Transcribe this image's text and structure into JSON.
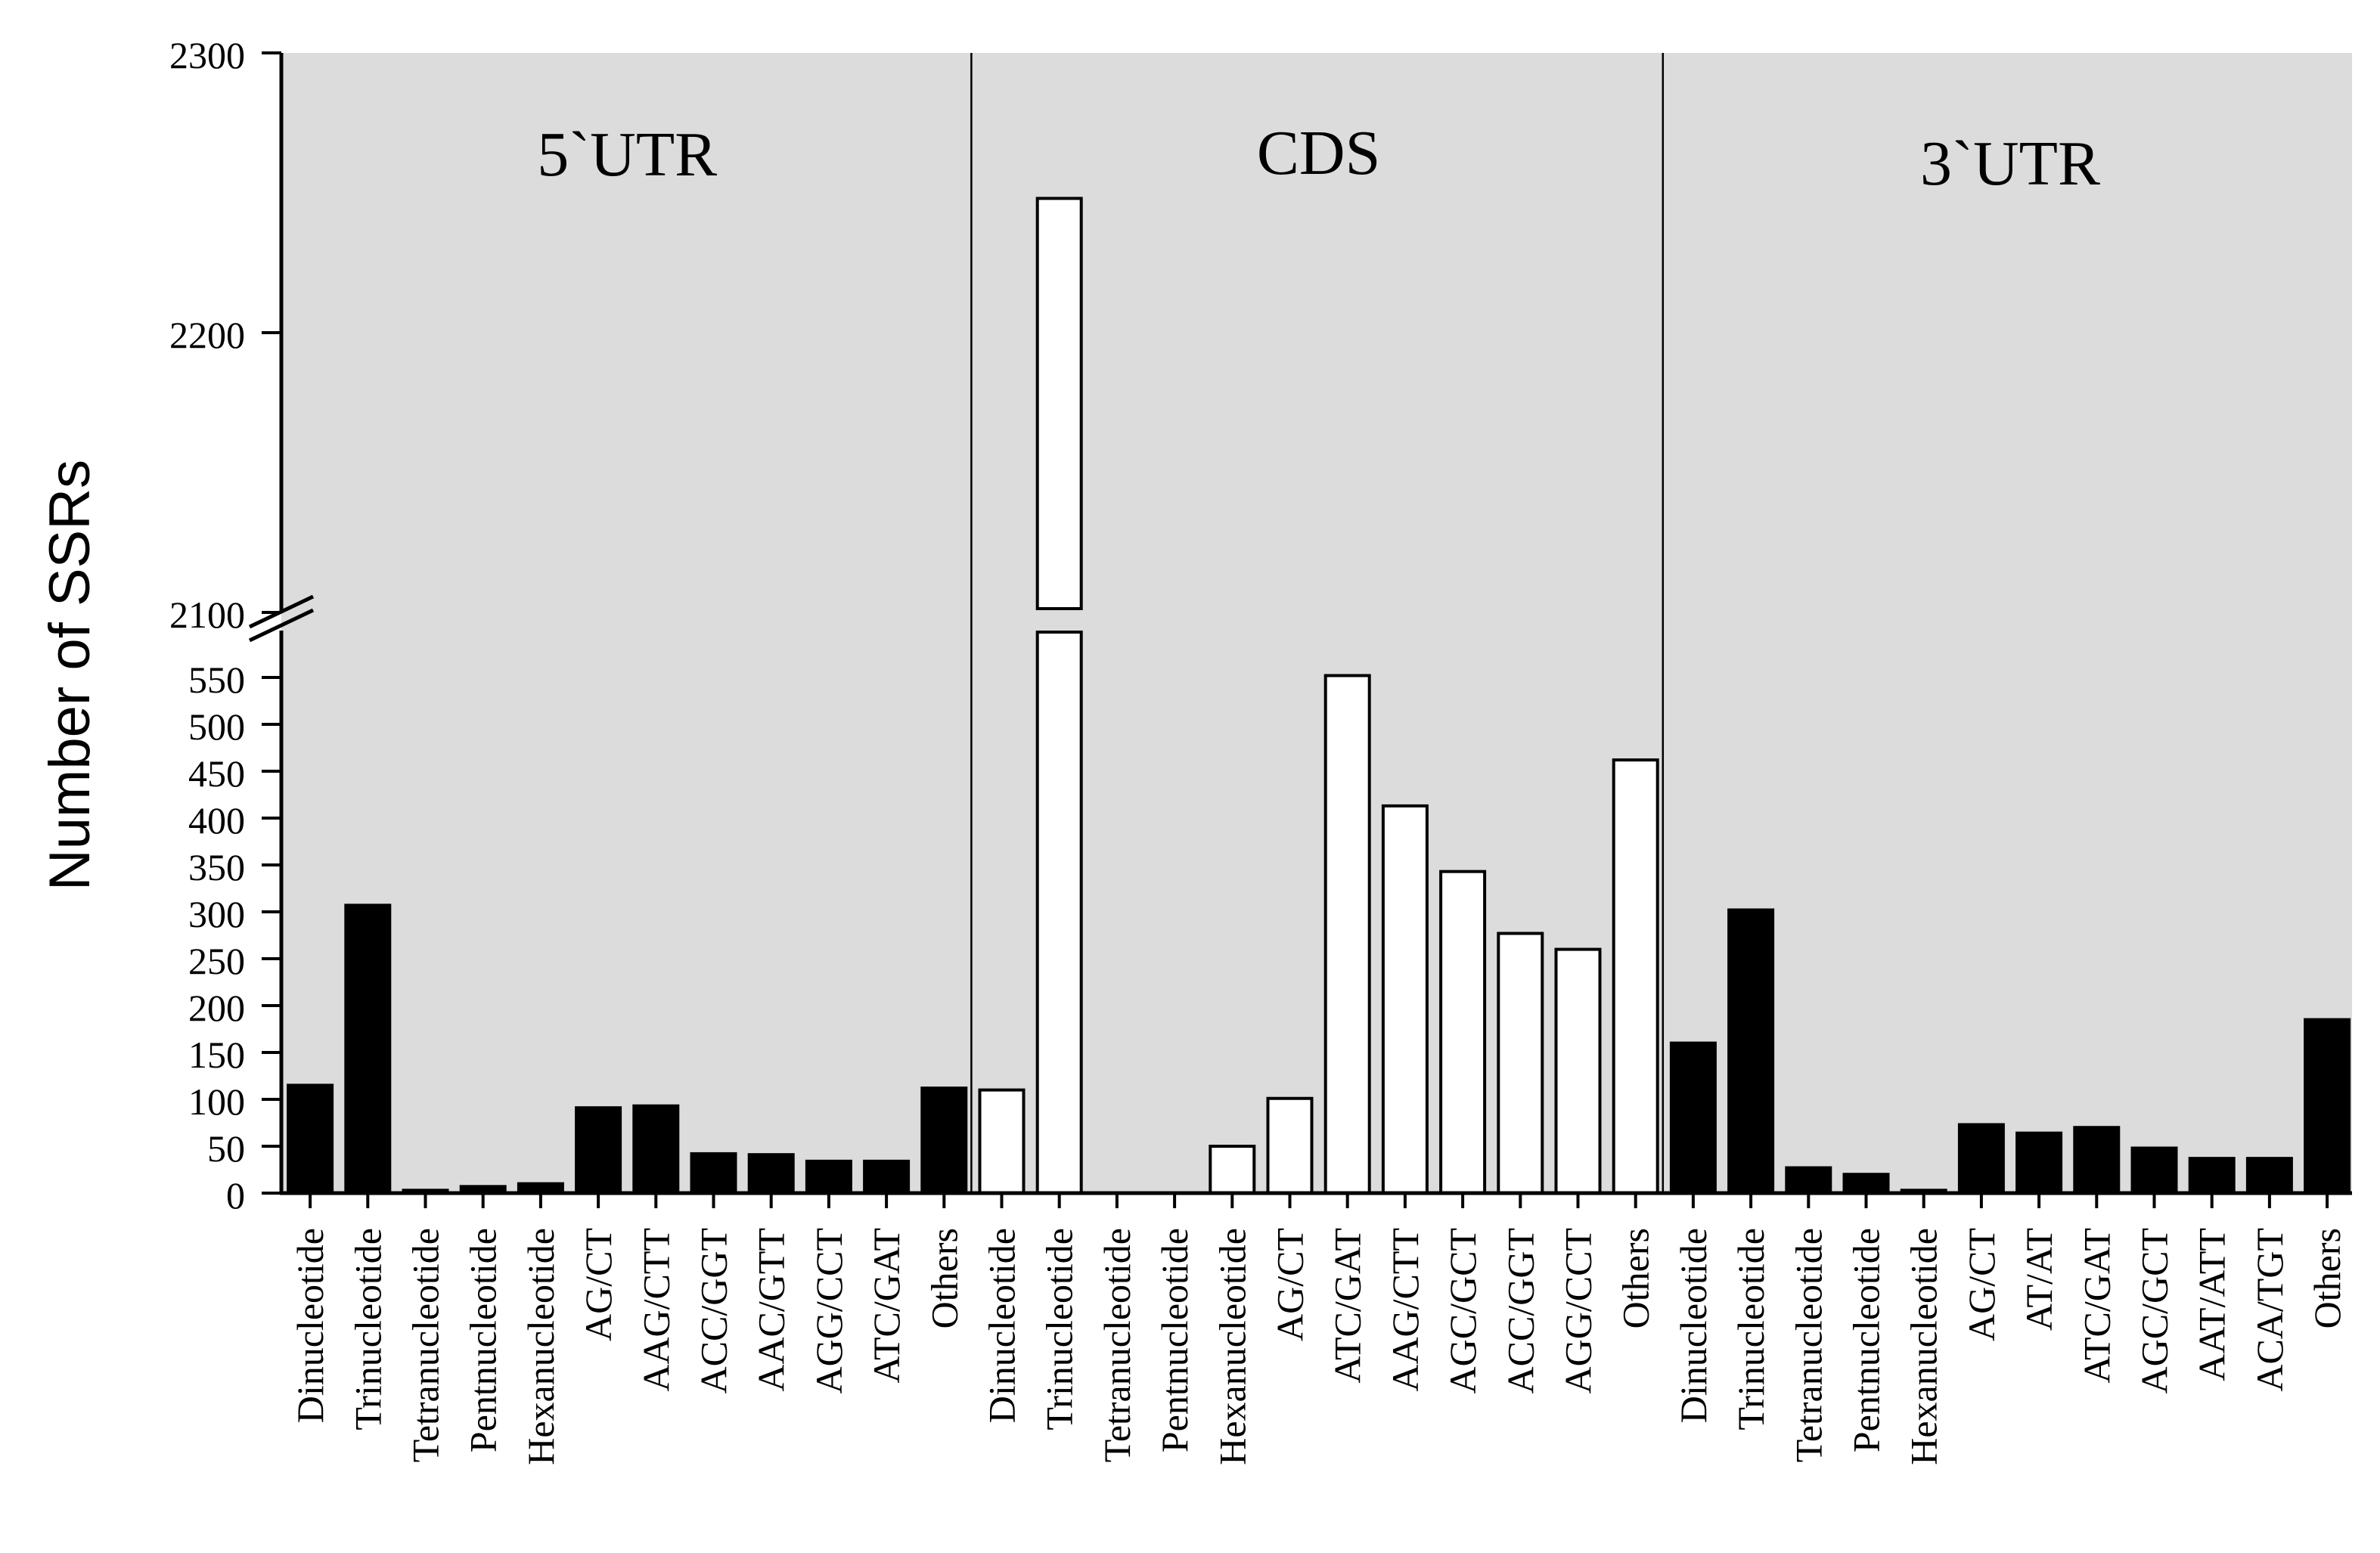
{
  "chart_data": {
    "type": "bar",
    "title": "",
    "xlabel": "",
    "ylabel": "Number of SSRs",
    "y_axis": {
      "broken": true,
      "lower_range": [
        0,
        575
      ],
      "upper_range": [
        2100,
        2300
      ],
      "lower_ticks": [
        0,
        50,
        100,
        150,
        200,
        250,
        300,
        350,
        400,
        450,
        500,
        550
      ],
      "upper_ticks": [
        2100,
        2200,
        2300
      ]
    },
    "colors": {
      "background": "#dcdcdc",
      "filled_bar": "#000000",
      "open_bar": "#ffffff",
      "outline": "#000000"
    },
    "sections": [
      {
        "name": "5`UTR",
        "fill": "black",
        "categories": [
          "Dinucleotide",
          "Trinucleotide",
          "Tetranucleotide",
          "Pentnucleotide",
          "Hexanucleotide",
          "AG/CT",
          "AAG/CTT",
          "ACC/GGT",
          "AAC/GTT",
          "AGG/CCT",
          "ATC/GAT",
          "Others"
        ],
        "values": [
          115,
          307,
          3,
          7,
          10,
          91,
          93,
          42,
          41,
          34,
          34,
          112
        ]
      },
      {
        "name": "CDS",
        "fill": "white",
        "categories": [
          "Dinucleotide",
          "Trinucleotide",
          "Tetranucleotide",
          "Pentnucleotide",
          "Hexanucleotide",
          "AG/CT",
          "ATC/GAT",
          "AAG/CTT",
          "AGC/GCT",
          "ACC/GGT",
          "AGG/CCT",
          "Others"
        ],
        "values": [
          110,
          2248,
          0,
          0,
          50,
          101,
          552,
          413,
          343,
          277,
          260,
          462
        ]
      },
      {
        "name": "3`UTR",
        "fill": "black",
        "categories": [
          "Dinucleotide",
          "Trinucleotide",
          "Tetranucleotide",
          "Pentnucleotide",
          "Hexanucleotide",
          "AG/CT",
          "AT/AT",
          "ATC/GAT",
          "AGC/GCT",
          "AAT/ATT",
          "ACA/TGT",
          "Others"
        ],
        "values": [
          160,
          302,
          27,
          20,
          3,
          73,
          64,
          70,
          48,
          37,
          37,
          185
        ]
      }
    ]
  }
}
